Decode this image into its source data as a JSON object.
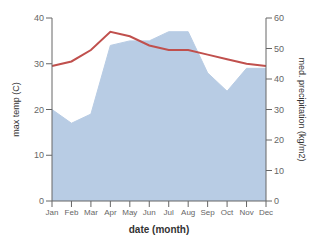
{
  "chart_data": {
    "type": "line",
    "xlabel": "date (month)",
    "ylabel": "max temp (C)",
    "y2label": "med. precipitation (kg/m2)",
    "categories": [
      "Jan",
      "Feb",
      "Mar",
      "Apr",
      "May",
      "Jun",
      "Jul",
      "Aug",
      "Sep",
      "Oct",
      "Nov",
      "Dec"
    ],
    "series": [
      {
        "type": "area",
        "color": "#b8cce4",
        "values": [
          20.0,
          17.0,
          19.0,
          34.0,
          35.0,
          35.0,
          37.0,
          37.0,
          28.0,
          24.0,
          29.0,
          29.0
        ]
      },
      {
        "type": "line",
        "color": "#c0504d",
        "values": [
          29.5,
          30.5,
          33.0,
          37.0,
          36.0,
          34.0,
          33.0,
          33.0,
          32.0,
          31.0,
          30.0,
          29.5
        ]
      }
    ],
    "ylim": [
      0,
      40
    ],
    "yticks": [
      0,
      10,
      20,
      30,
      40
    ],
    "y2lim": [
      0,
      60
    ],
    "y2ticks": [
      0,
      10,
      20,
      30,
      40,
      50,
      60
    ],
    "grid": false
  }
}
